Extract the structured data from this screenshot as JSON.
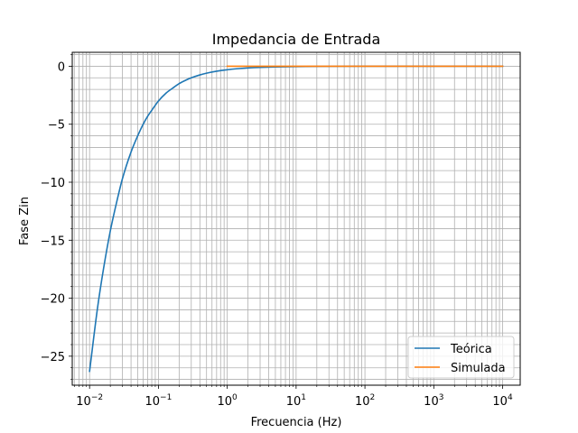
{
  "chart_data": {
    "type": "line",
    "title": "Impedancia de Entrada",
    "xlabel": "Frecuencia (Hz)",
    "ylabel": "Fase Zin",
    "xscale": "log",
    "xlim": [
      0.0056,
      18000
    ],
    "ylim": [
      -27.5,
      1.2
    ],
    "grid": true,
    "legend_position": "lower-right",
    "x_ticks": [
      {
        "value": 0.01,
        "base": "10",
        "exp": "−2"
      },
      {
        "value": 0.1,
        "base": "10",
        "exp": "−1"
      },
      {
        "value": 1,
        "base": "10",
        "exp": "0"
      },
      {
        "value": 10,
        "base": "10",
        "exp": "1"
      },
      {
        "value": 100,
        "base": "10",
        "exp": "2"
      },
      {
        "value": 1000,
        "base": "10",
        "exp": "3"
      },
      {
        "value": 10000,
        "base": "10",
        "exp": "4"
      }
    ],
    "y_ticks": [
      {
        "value": 0,
        "label": "0"
      },
      {
        "value": -5,
        "label": "−5"
      },
      {
        "value": -10,
        "label": "−10"
      },
      {
        "value": -15,
        "label": "−15"
      },
      {
        "value": -20,
        "label": "−20"
      },
      {
        "value": -25,
        "label": "−25"
      }
    ],
    "series": [
      {
        "name": "Teórica",
        "color": "#1f77b4",
        "x": [
          0.01,
          0.013,
          0.016,
          0.02,
          0.025,
          0.03,
          0.04,
          0.05,
          0.06,
          0.07,
          0.08,
          0.1,
          0.13,
          0.16,
          0.2,
          0.25,
          0.3,
          0.4,
          0.5,
          0.7,
          1,
          1.5,
          2,
          3,
          5,
          10,
          20,
          100,
          1000,
          10000
        ],
        "y": [
          -26.3,
          -20.9,
          -17.4,
          -14.2,
          -11.6,
          -9.7,
          -7.4,
          -6.0,
          -5.0,
          -4.3,
          -3.8,
          -3.0,
          -2.3,
          -1.9,
          -1.5,
          -1.2,
          -1.0,
          -0.75,
          -0.6,
          -0.43,
          -0.3,
          -0.2,
          -0.15,
          -0.1,
          -0.06,
          -0.03,
          -0.015,
          0,
          0,
          0
        ]
      },
      {
        "name": "Simulada",
        "color": "#ff7f0e",
        "x": [
          1,
          2,
          5,
          10,
          100,
          1000,
          10000
        ],
        "y": [
          0,
          0,
          0,
          0,
          0,
          0,
          0
        ]
      }
    ]
  }
}
